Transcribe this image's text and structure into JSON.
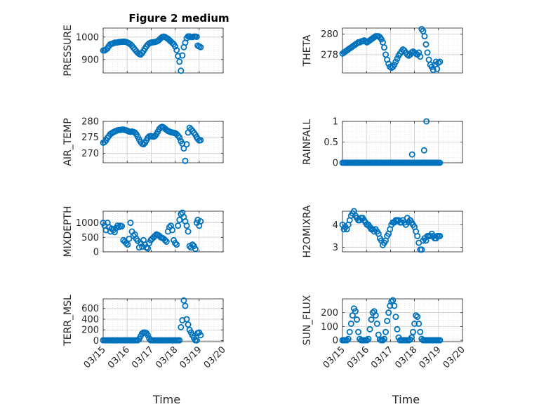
{
  "figure_title": "Figure 2 medium",
  "colors": {
    "marker": "#0072BD",
    "axis": "#262626",
    "grid": "#d9d9d9",
    "background": "#ffffff"
  },
  "chart_data": [
    {
      "type": "scatter",
      "ylabel": "PRESSURE",
      "xlabel": "",
      "xlim": [
        "03/15",
        "03/20"
      ],
      "ylim": [
        840,
        1040
      ],
      "yticks": [
        900,
        1000
      ],
      "ytick_labels": [
        "900",
        "1000"
      ],
      "xtick_labels": [],
      "grid": "on",
      "minor_grid": "on",
      "x": [
        0.0,
        0.06,
        0.12,
        0.18,
        0.24,
        0.3,
        0.36,
        0.42,
        0.48,
        0.54,
        0.6,
        0.66,
        0.72,
        0.78,
        0.84,
        0.9,
        0.96,
        1.02,
        1.08,
        1.14,
        1.2,
        1.26,
        1.32,
        1.38,
        1.44,
        1.5,
        1.56,
        1.62,
        1.68,
        1.74,
        1.8,
        1.86,
        1.92,
        1.98,
        2.04,
        2.1,
        2.16,
        2.22,
        2.28,
        2.34,
        2.4,
        2.46,
        2.52,
        2.58,
        2.64,
        2.7,
        2.76,
        2.82,
        2.88,
        2.94,
        3.0,
        3.06,
        3.12,
        3.18,
        3.24,
        3.3,
        3.36,
        3.42,
        3.48,
        3.54,
        3.6,
        3.66,
        3.72,
        3.78,
        3.84,
        3.9,
        3.94,
        4.0,
        4.06
      ],
      "y": [
        940,
        940,
        945,
        950,
        960,
        968,
        970,
        972,
        975,
        975,
        976,
        978,
        978,
        979,
        979,
        979,
        978,
        975,
        972,
        967,
        961,
        953,
        945,
        937,
        930,
        925,
        922,
        928,
        938,
        948,
        958,
        966,
        972,
        975,
        976,
        977,
        978,
        980,
        983,
        988,
        995,
        1000,
        1002,
        1000,
        996,
        992,
        986,
        980,
        974,
        968,
        958,
        942,
        915,
        890,
        850,
        918,
        955,
        975,
        995,
        1003,
        1003,
        1000,
        1000,
        1002,
        1002,
        1001,
        962,
        958,
        955
      ]
    },
    {
      "type": "scatter",
      "ylabel": "THETA",
      "xlabel": "",
      "xlim": [
        "03/15",
        "03/20"
      ],
      "ylim": [
        276.2,
        280.6
      ],
      "yticks": [
        278,
        280
      ],
      "ytick_labels": [
        "278",
        "280"
      ],
      "xtick_labels": [],
      "grid": "on",
      "minor_grid": "on",
      "x": [
        0.0,
        0.06,
        0.12,
        0.18,
        0.24,
        0.3,
        0.36,
        0.42,
        0.48,
        0.54,
        0.6,
        0.66,
        0.72,
        0.78,
        0.84,
        0.9,
        0.96,
        1.02,
        1.08,
        1.14,
        1.2,
        1.26,
        1.32,
        1.38,
        1.44,
        1.5,
        1.56,
        1.62,
        1.68,
        1.74,
        1.8,
        1.86,
        1.92,
        1.98,
        2.04,
        2.1,
        2.16,
        2.22,
        2.28,
        2.34,
        2.4,
        2.46,
        2.52,
        2.58,
        2.64,
        2.7,
        2.76,
        2.82,
        2.88,
        2.94,
        3.0,
        3.06,
        3.12,
        3.18,
        3.24,
        3.3,
        3.36,
        3.42,
        3.48,
        3.54,
        3.6,
        3.66,
        3.72,
        3.78,
        3.84,
        3.9,
        3.94,
        4.0,
        4.06
      ],
      "y": [
        278.1,
        278.2,
        278.3,
        278.4,
        278.5,
        278.6,
        278.7,
        278.8,
        278.9,
        279.0,
        279.1,
        279.2,
        279.2,
        279.3,
        279.3,
        279.4,
        279.3,
        279.2,
        279.3,
        279.4,
        279.5,
        279.6,
        279.7,
        279.8,
        279.8,
        279.8,
        279.7,
        279.5,
        279.2,
        278.7,
        278.0,
        277.5,
        277.1,
        276.8,
        276.7,
        276.8,
        277.0,
        277.3,
        277.6,
        277.9,
        278.1,
        278.3,
        278.5,
        278.4,
        278.2,
        278.0,
        277.9,
        278.0,
        278.2,
        278.3,
        278.2,
        278.1,
        278.0,
        278.2,
        277.8,
        280.5,
        280.3,
        279.8,
        279.0,
        278.2,
        277.5,
        277.0,
        276.8,
        276.5,
        277.0,
        277.3,
        276.6,
        277.2,
        277.3
      ]
    },
    {
      "type": "scatter",
      "ylabel": "AIR_TEMP",
      "xlabel": "",
      "xlim": [
        "03/15",
        "03/20"
      ],
      "ylim": [
        267,
        280
      ],
      "yticks": [
        270,
        275,
        280
      ],
      "ytick_labels": [
        "270",
        "275",
        "280"
      ],
      "xtick_labels": [],
      "grid": "on",
      "minor_grid": "on",
      "x": [
        0.0,
        0.06,
        0.12,
        0.18,
        0.24,
        0.3,
        0.36,
        0.42,
        0.48,
        0.54,
        0.6,
        0.66,
        0.72,
        0.78,
        0.84,
        0.9,
        0.96,
        1.02,
        1.08,
        1.14,
        1.2,
        1.26,
        1.32,
        1.38,
        1.44,
        1.5,
        1.56,
        1.62,
        1.68,
        1.74,
        1.8,
        1.86,
        1.92,
        1.98,
        2.04,
        2.1,
        2.16,
        2.22,
        2.28,
        2.34,
        2.4,
        2.46,
        2.52,
        2.58,
        2.64,
        2.7,
        2.76,
        2.82,
        2.88,
        2.94,
        3.0,
        3.06,
        3.12,
        3.18,
        3.24,
        3.3,
        3.36,
        3.42,
        3.48,
        3.54,
        3.6,
        3.66,
        3.72,
        3.78,
        3.84,
        3.9,
        3.94,
        4.0,
        4.06
      ],
      "y": [
        273.3,
        273.5,
        274.0,
        274.8,
        275.4,
        276.0,
        276.3,
        276.6,
        276.8,
        277.0,
        277.2,
        277.3,
        277.3,
        277.4,
        277.4,
        277.3,
        277.2,
        277.0,
        276.8,
        276.7,
        276.8,
        276.7,
        276.5,
        276.0,
        275.2,
        274.3,
        273.5,
        273.0,
        272.8,
        273.2,
        274.0,
        274.8,
        275.3,
        275.4,
        275.3,
        275.2,
        275.4,
        276.0,
        276.8,
        277.6,
        278.1,
        278.3,
        278.1,
        277.7,
        277.3,
        277.0,
        276.8,
        276.6,
        276.5,
        276.4,
        276.3,
        276.0,
        275.5,
        274.9,
        273.8,
        273.0,
        271.5,
        267.6,
        272.8,
        276.5,
        278.0,
        277.5,
        277.0,
        276.4,
        275.8,
        275.0,
        274.5,
        274.0,
        274.1
      ]
    },
    {
      "type": "scatter",
      "ylabel": "RAINFALL",
      "xlabel": "",
      "xlim": [
        "03/15",
        "03/20"
      ],
      "ylim": [
        0,
        1
      ],
      "yticks": [
        0,
        0.5,
        1
      ],
      "ytick_labels": [
        "0",
        "0.5",
        "1"
      ],
      "xtick_labels": [],
      "grid": "on",
      "minor_grid": "on",
      "x": [
        0.0,
        0.06,
        0.12,
        0.18,
        0.24,
        0.3,
        0.36,
        0.42,
        0.48,
        0.54,
        0.6,
        0.66,
        0.72,
        0.78,
        0.84,
        0.9,
        0.96,
        1.02,
        1.08,
        1.14,
        1.2,
        1.26,
        1.32,
        1.38,
        1.44,
        1.5,
        1.56,
        1.62,
        1.68,
        1.74,
        1.8,
        1.86,
        1.92,
        1.98,
        2.04,
        2.1,
        2.16,
        2.22,
        2.28,
        2.34,
        2.4,
        2.46,
        2.52,
        2.58,
        2.64,
        2.7,
        2.76,
        2.82,
        2.88,
        2.94,
        3.0,
        3.06,
        3.12,
        3.18,
        3.24,
        3.3,
        3.36,
        3.42,
        3.48,
        3.54,
        3.6,
        3.66,
        3.72,
        3.78,
        3.84,
        3.9,
        3.94,
        4.0,
        4.06,
        2.9,
        3.4,
        3.5
      ],
      "y": [
        0,
        0,
        0,
        0,
        0,
        0,
        0,
        0,
        0,
        0,
        0,
        0,
        0,
        0,
        0,
        0,
        0,
        0,
        0,
        0,
        0,
        0,
        0,
        0,
        0,
        0,
        0,
        0,
        0,
        0,
        0,
        0,
        0,
        0,
        0,
        0,
        0,
        0,
        0,
        0,
        0,
        0,
        0,
        0,
        0,
        0,
        0,
        0,
        0,
        0,
        0,
        0,
        0,
        0,
        0,
        0,
        0,
        0,
        0,
        0,
        0,
        0,
        0,
        0,
        0,
        0,
        0,
        0,
        0,
        0.2,
        0.3,
        1.0
      ]
    },
    {
      "type": "scatter",
      "ylabel": "MIXDEPTH",
      "xlabel": "",
      "xlim": [
        "03/15",
        "03/20"
      ],
      "ylim": [
        0,
        1400
      ],
      "yticks": [
        0,
        500,
        1000
      ],
      "ytick_labels": [
        "0",
        "500",
        "1000"
      ],
      "xtick_labels": [],
      "grid": "on",
      "minor_grid": "on",
      "x": [
        0.0,
        0.06,
        0.12,
        0.18,
        0.24,
        0.3,
        0.36,
        0.42,
        0.48,
        0.54,
        0.6,
        0.66,
        0.72,
        0.78,
        0.84,
        0.9,
        0.96,
        1.02,
        1.08,
        1.14,
        1.2,
        1.26,
        1.32,
        1.38,
        1.44,
        1.5,
        1.56,
        1.62,
        1.68,
        1.74,
        1.8,
        1.86,
        1.92,
        1.98,
        2.04,
        2.1,
        2.16,
        2.22,
        2.28,
        2.34,
        2.4,
        2.46,
        2.52,
        2.58,
        2.64,
        2.7,
        2.76,
        2.82,
        2.88,
        2.94,
        3.0,
        3.06,
        3.12,
        3.18,
        3.24,
        3.3,
        3.36,
        3.42,
        3.48,
        3.54,
        3.6,
        3.66,
        3.72,
        3.78,
        3.84,
        3.9,
        3.94,
        4.0,
        4.06
      ],
      "y": [
        1000,
        900,
        750,
        1000,
        850,
        700,
        800,
        750,
        680,
        820,
        900,
        850,
        900,
        880,
        400,
        350,
        300,
        250,
        450,
        1000,
        700,
        550,
        600,
        450,
        380,
        150,
        300,
        180,
        400,
        250,
        150,
        120,
        300,
        400,
        450,
        500,
        550,
        600,
        580,
        550,
        500,
        480,
        450,
        400,
        350,
        700,
        850,
        900,
        750,
        400,
        300,
        250,
        900,
        1100,
        1300,
        1350,
        1200,
        1050,
        900,
        700,
        200,
        150,
        250,
        200,
        100,
        1000,
        1100,
        900,
        1050
      ]
    },
    {
      "type": "scatter",
      "ylabel": "H2OMIXRA",
      "xlabel": "",
      "xlim": [
        "03/15",
        "03/20"
      ],
      "ylim": [
        2.8,
        4.6
      ],
      "yticks": [
        3,
        4
      ],
      "ytick_labels": [
        "3",
        "4"
      ],
      "xtick_labels": [],
      "grid": "on",
      "minor_grid": "on",
      "x": [
        0.0,
        0.06,
        0.12,
        0.18,
        0.24,
        0.3,
        0.36,
        0.42,
        0.48,
        0.54,
        0.6,
        0.66,
        0.72,
        0.78,
        0.84,
        0.9,
        0.96,
        1.02,
        1.08,
        1.14,
        1.2,
        1.26,
        1.32,
        1.38,
        1.44,
        1.5,
        1.56,
        1.62,
        1.68,
        1.74,
        1.8,
        1.86,
        1.92,
        1.98,
        2.04,
        2.1,
        2.16,
        2.22,
        2.28,
        2.34,
        2.4,
        2.46,
        2.52,
        2.58,
        2.64,
        2.7,
        2.76,
        2.82,
        2.88,
        2.94,
        3.0,
        3.06,
        3.12,
        3.18,
        3.24,
        3.3,
        3.36,
        3.42,
        3.48,
        3.54,
        3.6,
        3.66,
        3.72,
        3.78,
        3.84,
        3.9,
        3.94,
        4.0,
        4.06
      ],
      "y": [
        4.0,
        3.8,
        3.9,
        3.8,
        4.0,
        4.2,
        4.4,
        4.5,
        4.6,
        4.4,
        4.3,
        4.2,
        4.2,
        4.3,
        4.3,
        4.2,
        4.1,
        4.0,
        4.0,
        3.9,
        3.8,
        3.8,
        3.7,
        3.8,
        3.7,
        3.6,
        3.4,
        3.3,
        3.1,
        3.2,
        3.3,
        3.5,
        3.6,
        3.8,
        4.0,
        4.1,
        4.1,
        4.2,
        4.2,
        4.2,
        4.1,
        4.1,
        4.2,
        4.1,
        4.0,
        4.3,
        4.1,
        4.2,
        4.1,
        4.0,
        3.9,
        3.7,
        3.5,
        3.2,
        2.9,
        2.9,
        3.3,
        3.4,
        3.3,
        3.5,
        3.5,
        3.5,
        3.6,
        3.5,
        3.4,
        3.4,
        3.5,
        3.5,
        3.5
      ]
    },
    {
      "type": "scatter",
      "ylabel": "TERR_MSL",
      "xlabel": "Time",
      "xlim": [
        "03/15",
        "03/20"
      ],
      "ylim": [
        -20,
        780
      ],
      "yticks": [
        0,
        200,
        400,
        600
      ],
      "ytick_labels": [
        "0",
        "200",
        "400",
        "600"
      ],
      "xticks": [
        0,
        1,
        2,
        3,
        4,
        5
      ],
      "xtick_labels": [
        "03/15",
        "03/16",
        "03/17",
        "03/18",
        "03/19",
        "03/20"
      ],
      "grid": "on",
      "minor_grid": "on",
      "x": [
        0.0,
        0.06,
        0.12,
        0.18,
        0.24,
        0.3,
        0.36,
        0.42,
        0.48,
        0.54,
        0.6,
        0.66,
        0.72,
        0.78,
        0.84,
        0.9,
        0.96,
        1.02,
        1.08,
        1.14,
        1.2,
        1.26,
        1.32,
        1.38,
        1.44,
        1.5,
        1.56,
        1.62,
        1.68,
        1.74,
        1.8,
        1.86,
        1.92,
        1.98,
        2.04,
        2.1,
        2.16,
        2.22,
        2.28,
        2.34,
        2.4,
        2.46,
        2.52,
        2.58,
        2.64,
        2.7,
        2.76,
        2.82,
        2.88,
        2.94,
        3.0,
        3.06,
        3.12,
        3.18,
        3.24,
        3.3,
        3.36,
        3.42,
        3.48,
        3.54,
        3.6,
        3.66,
        3.72,
        3.78,
        3.84,
        3.9,
        3.94,
        4.0,
        4.06
      ],
      "y": [
        5,
        5,
        5,
        5,
        5,
        5,
        5,
        5,
        5,
        5,
        5,
        5,
        5,
        5,
        5,
        5,
        5,
        5,
        5,
        5,
        5,
        5,
        5,
        5,
        5,
        30,
        80,
        130,
        150,
        150,
        140,
        100,
        40,
        5,
        5,
        5,
        5,
        5,
        5,
        5,
        5,
        5,
        5,
        5,
        5,
        5,
        5,
        5,
        5,
        5,
        5,
        5,
        5,
        5,
        250,
        380,
        750,
        650,
        400,
        300,
        200,
        150,
        100,
        50,
        5,
        5,
        140,
        150,
        100
      ]
    },
    {
      "type": "scatter",
      "ylabel": "SUN_FLUX",
      "xlabel": "Time",
      "xlim": [
        "03/15",
        "03/20"
      ],
      "ylim": [
        -10,
        300
      ],
      "yticks": [
        0,
        100,
        200
      ],
      "ytick_labels": [
        "0",
        "100",
        "200"
      ],
      "xticks": [
        0,
        1,
        2,
        3,
        4,
        5
      ],
      "xtick_labels": [
        "03/15",
        "03/16",
        "03/17",
        "03/18",
        "03/19",
        "03/20"
      ],
      "grid": "on",
      "minor_grid": "on",
      "x": [
        0.0,
        0.06,
        0.12,
        0.18,
        0.24,
        0.3,
        0.36,
        0.42,
        0.48,
        0.54,
        0.6,
        0.66,
        0.72,
        0.78,
        0.84,
        0.9,
        0.96,
        1.02,
        1.08,
        1.14,
        1.2,
        1.26,
        1.32,
        1.38,
        1.44,
        1.5,
        1.56,
        1.62,
        1.68,
        1.74,
        1.8,
        1.86,
        1.92,
        1.98,
        2.04,
        2.1,
        2.16,
        2.22,
        2.28,
        2.34,
        2.4,
        2.46,
        2.52,
        2.58,
        2.64,
        2.7,
        2.76,
        2.82,
        2.88,
        2.94,
        3.0,
        3.06,
        3.12,
        3.18,
        3.24,
        3.3,
        3.36,
        3.42,
        3.48,
        3.54,
        3.6,
        3.66,
        3.72,
        3.78,
        3.84,
        3.9,
        3.94,
        4.0,
        4.06
      ],
      "y": [
        0,
        0,
        0,
        0,
        10,
        60,
        120,
        180,
        230,
        210,
        150,
        60,
        10,
        0,
        0,
        0,
        0,
        0,
        10,
        80,
        150,
        200,
        210,
        180,
        120,
        40,
        5,
        0,
        0,
        10,
        60,
        140,
        200,
        250,
        280,
        290,
        250,
        170,
        80,
        20,
        0,
        0,
        0,
        0,
        0,
        0,
        0,
        5,
        20,
        60,
        120,
        180,
        170,
        120,
        60,
        10,
        0,
        0,
        0,
        0,
        0,
        0,
        0,
        0,
        0,
        0,
        0,
        0,
        0
      ]
    }
  ]
}
